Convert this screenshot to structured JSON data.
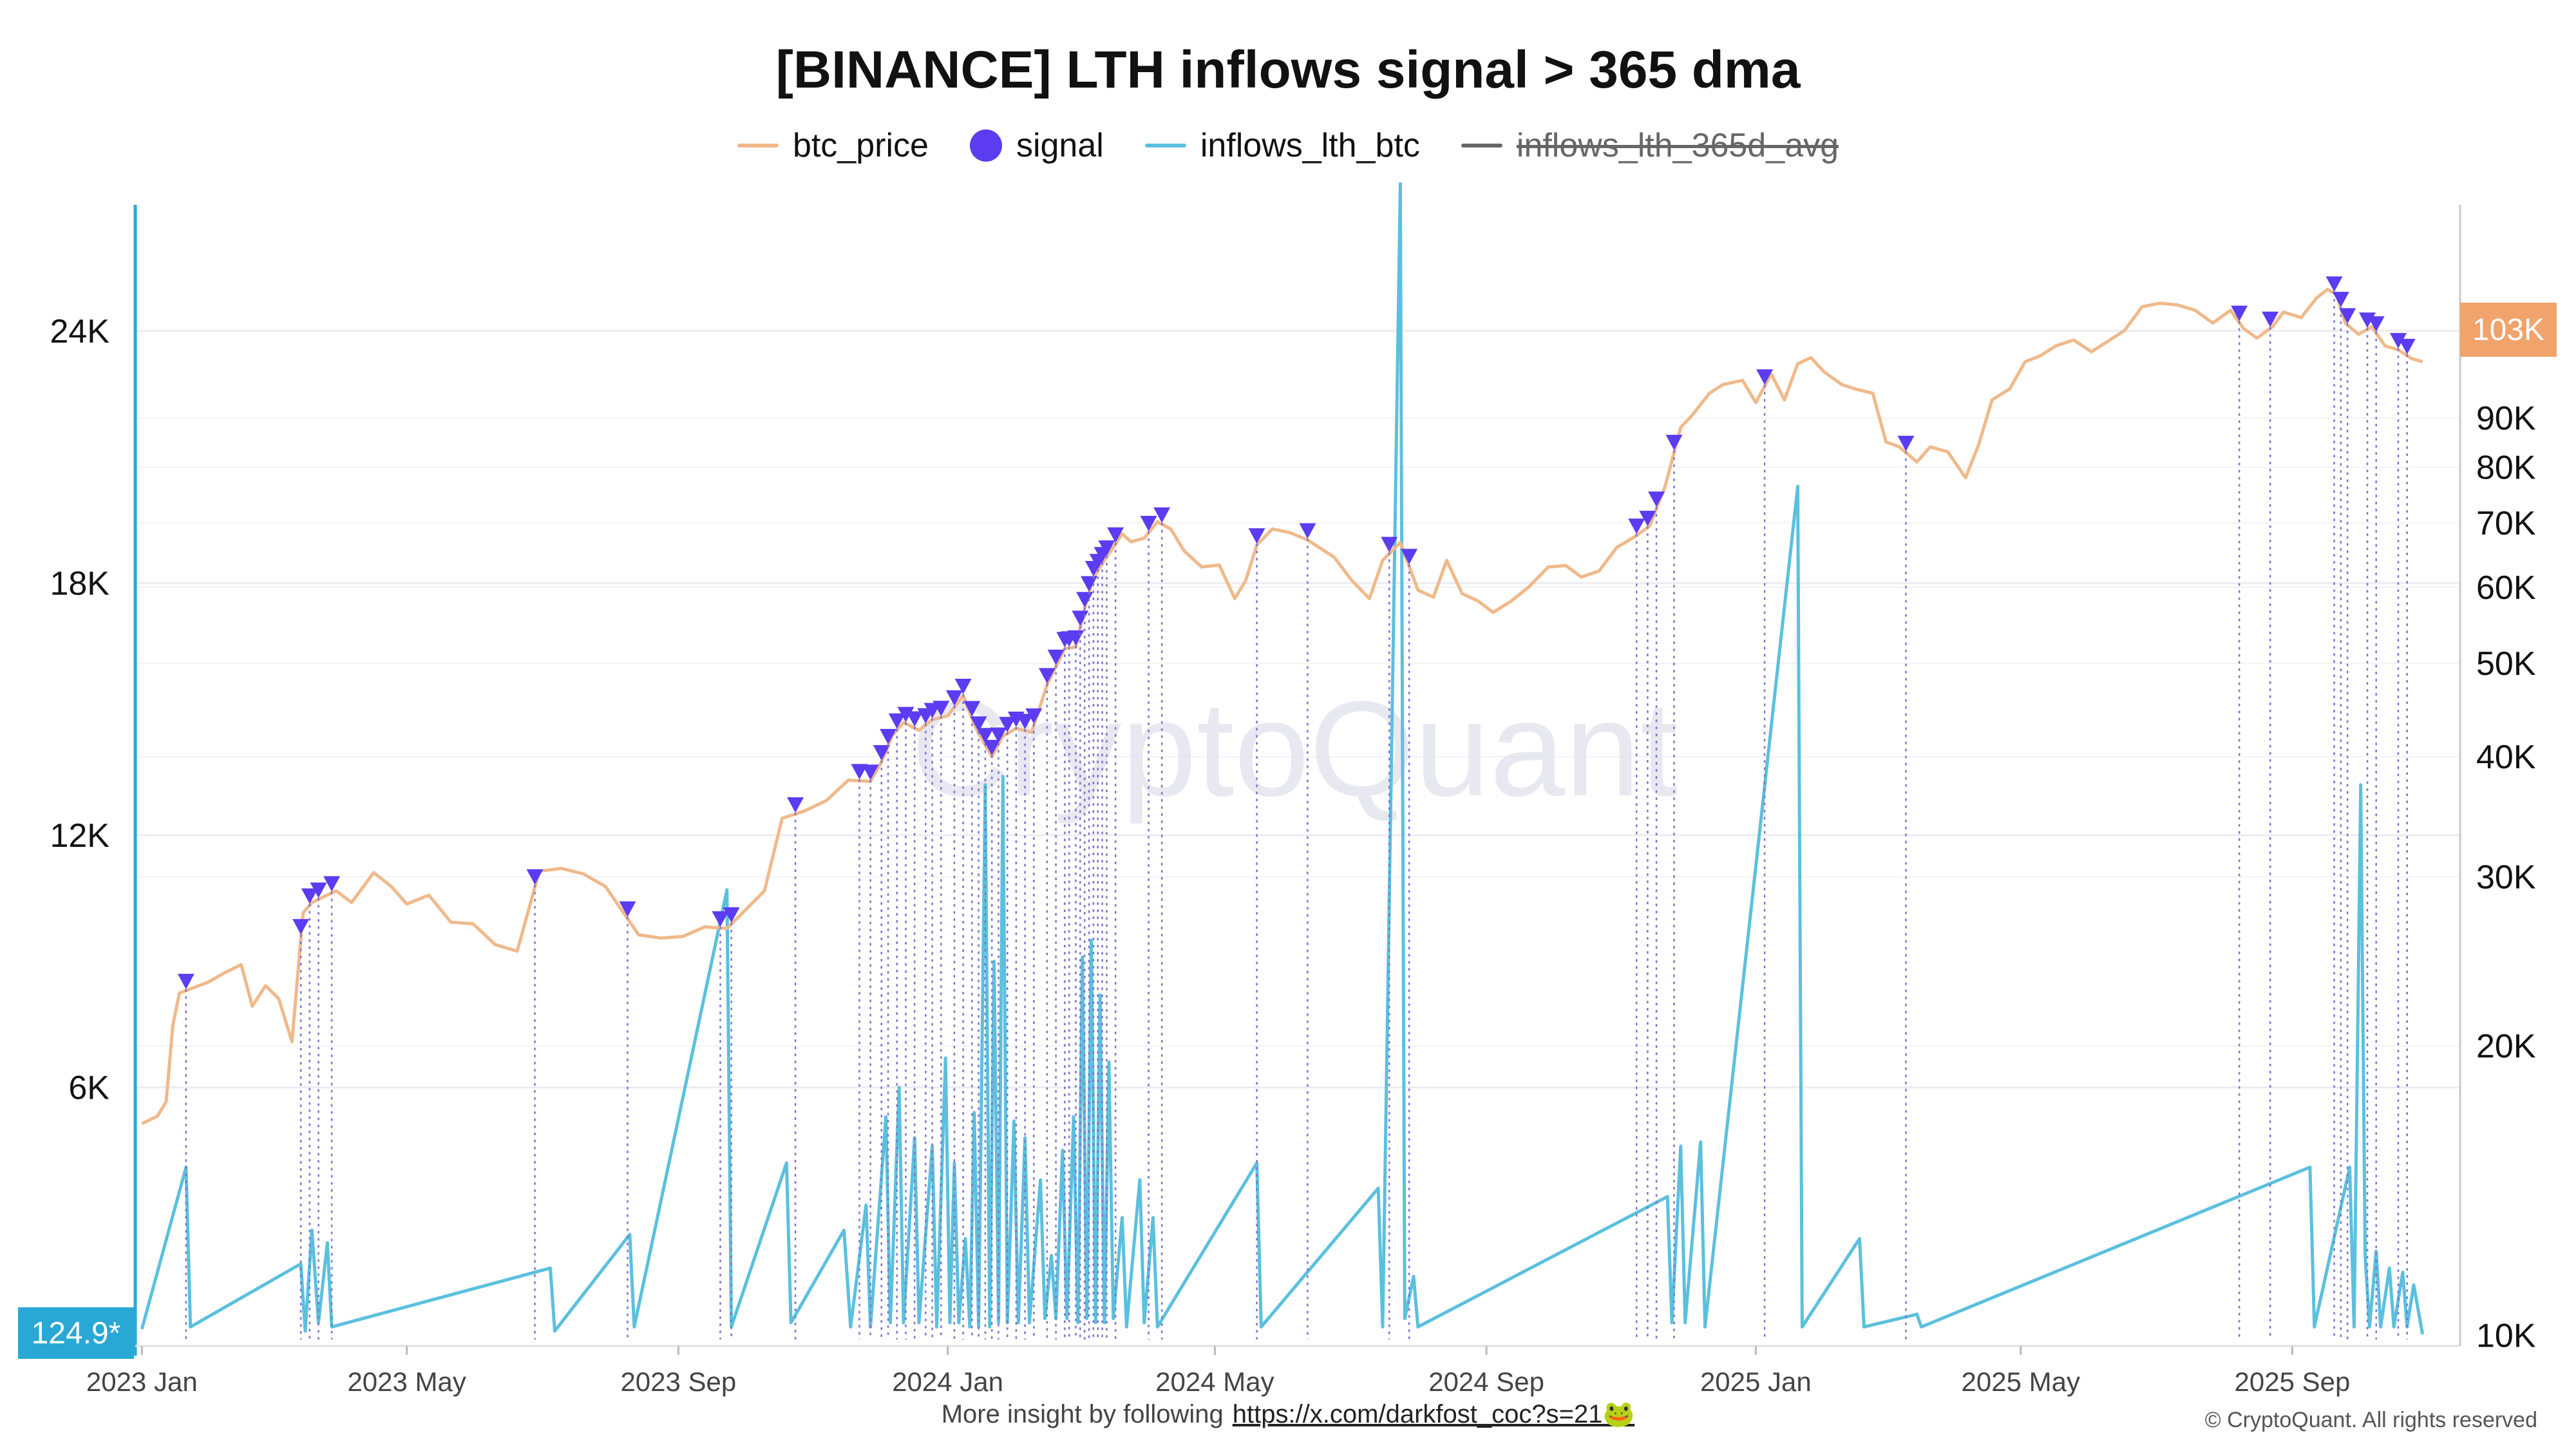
{
  "chart_data": {
    "type": "line",
    "title": "[BINANCE] LTH inflows signal > 365 dma",
    "legend": [
      {
        "name": "btc_price",
        "color": "#f0b98a",
        "marker": "line",
        "visible": true
      },
      {
        "name": "signal",
        "color": "#5b3cf0",
        "marker": "dot",
        "visible": true
      },
      {
        "name": "inflows_lth_btc",
        "color": "#5bc0de",
        "marker": "line",
        "visible": true
      },
      {
        "name": "inflows_lth_365d_avg",
        "color": "#666666",
        "marker": "line",
        "visible": false
      }
    ],
    "legend_position": "top-center",
    "x_ticks": [
      "2023 Jan",
      "2023 May",
      "2023 Sep",
      "2024 Jan",
      "2024 May",
      "2024 Sep",
      "2025 Jan",
      "2025 May",
      "2025 Sep"
    ],
    "x_tick_days": [
      0,
      120,
      243,
      365,
      486,
      609,
      731,
      851,
      974
    ],
    "x_start_date": "2023-01-01",
    "x_range_days": [
      -3,
      1050
    ],
    "left_axis": {
      "series": "inflows_lth_btc",
      "scale": "linear",
      "range": [
        0,
        27000
      ],
      "ticks": [
        6000,
        12000,
        18000,
        24000
      ],
      "tick_labels": [
        "6K",
        "12K",
        "18K",
        "24K"
      ],
      "current_value_label": "124.9*",
      "color": "#29a8d6"
    },
    "right_axis": {
      "series": "btc_price",
      "scale": "log",
      "range": [
        9900,
        150000
      ],
      "ticks": [
        10000,
        20000,
        30000,
        40000,
        50000,
        60000,
        70000,
        80000,
        90000
      ],
      "tick_labels": [
        "10K",
        "20K",
        "30K",
        "40K",
        "50K",
        "60K",
        "70K",
        "80K",
        "90K"
      ],
      "current_value_label": "103K",
      "color": "#f0a36a"
    },
    "grid": true,
    "btc_price_points": [
      [
        0,
        16600
      ],
      [
        7,
        16900
      ],
      [
        11,
        17500
      ],
      [
        14,
        21000
      ],
      [
        17,
        22700
      ],
      [
        30,
        23300
      ],
      [
        37,
        23800
      ],
      [
        45,
        24300
      ],
      [
        50,
        22000
      ],
      [
        56,
        23100
      ],
      [
        62,
        22400
      ],
      [
        68,
        20200
      ],
      [
        73,
        27500
      ],
      [
        77,
        28200
      ],
      [
        88,
        29000
      ],
      [
        95,
        28200
      ],
      [
        105,
        30300
      ],
      [
        113,
        29300
      ],
      [
        120,
        28100
      ],
      [
        130,
        28700
      ],
      [
        140,
        26900
      ],
      [
        150,
        26800
      ],
      [
        160,
        25500
      ],
      [
        170,
        25100
      ],
      [
        180,
        30400
      ],
      [
        190,
        30600
      ],
      [
        200,
        30200
      ],
      [
        210,
        29300
      ],
      [
        225,
        26100
      ],
      [
        235,
        25900
      ],
      [
        245,
        26000
      ],
      [
        255,
        26600
      ],
      [
        265,
        26500
      ],
      [
        272,
        27500
      ],
      [
        282,
        29000
      ],
      [
        290,
        34500
      ],
      [
        300,
        35100
      ],
      [
        310,
        36000
      ],
      [
        320,
        37800
      ],
      [
        330,
        37700
      ],
      [
        335,
        39500
      ],
      [
        340,
        42100
      ],
      [
        345,
        43400
      ],
      [
        352,
        42600
      ],
      [
        358,
        43700
      ],
      [
        365,
        44100
      ],
      [
        372,
        46300
      ],
      [
        378,
        42700
      ],
      [
        385,
        40000
      ],
      [
        390,
        42000
      ],
      [
        396,
        42800
      ],
      [
        403,
        42400
      ],
      [
        410,
        47500
      ],
      [
        418,
        51800
      ],
      [
        423,
        52000
      ],
      [
        427,
        57000
      ],
      [
        431,
        61400
      ],
      [
        436,
        64000
      ],
      [
        440,
        66000
      ],
      [
        444,
        68200
      ],
      [
        448,
        66900
      ],
      [
        454,
        67500
      ],
      [
        460,
        70200
      ],
      [
        466,
        69000
      ],
      [
        472,
        65500
      ],
      [
        480,
        63000
      ],
      [
        488,
        63300
      ],
      [
        495,
        58400
      ],
      [
        500,
        61000
      ],
      [
        505,
        66400
      ],
      [
        512,
        69000
      ],
      [
        520,
        68400
      ],
      [
        528,
        67200
      ],
      [
        540,
        64500
      ],
      [
        548,
        61000
      ],
      [
        556,
        58400
      ],
      [
        562,
        64000
      ],
      [
        570,
        66800
      ],
      [
        578,
        59600
      ],
      [
        585,
        58600
      ],
      [
        591,
        64000
      ],
      [
        598,
        59100
      ],
      [
        605,
        58100
      ],
      [
        612,
        56500
      ],
      [
        620,
        58000
      ],
      [
        628,
        60000
      ],
      [
        637,
        63000
      ],
      [
        645,
        63200
      ],
      [
        652,
        61500
      ],
      [
        660,
        62400
      ],
      [
        668,
        66000
      ],
      [
        676,
        67700
      ],
      [
        683,
        69500
      ],
      [
        690,
        76500
      ],
      [
        697,
        88000
      ],
      [
        702,
        90500
      ],
      [
        710,
        95500
      ],
      [
        716,
        97500
      ],
      [
        725,
        98500
      ],
      [
        731,
        93400
      ],
      [
        738,
        100000
      ],
      [
        744,
        94000
      ],
      [
        750,
        102500
      ],
      [
        756,
        104000
      ],
      [
        762,
        100500
      ],
      [
        770,
        97500
      ],
      [
        776,
        96500
      ],
      [
        784,
        95500
      ],
      [
        790,
        85000
      ],
      [
        796,
        84000
      ],
      [
        804,
        81000
      ],
      [
        810,
        84000
      ],
      [
        818,
        83000
      ],
      [
        826,
        78000
      ],
      [
        832,
        84500
      ],
      [
        838,
        94000
      ],
      [
        846,
        96500
      ],
      [
        853,
        103000
      ],
      [
        860,
        104500
      ],
      [
        867,
        107000
      ],
      [
        875,
        108500
      ],
      [
        883,
        105500
      ],
      [
        890,
        108000
      ],
      [
        898,
        111000
      ],
      [
        906,
        117500
      ],
      [
        914,
        118500
      ],
      [
        922,
        118000
      ],
      [
        930,
        116500
      ],
      [
        938,
        113000
      ],
      [
        946,
        116500
      ],
      [
        952,
        111500
      ],
      [
        958,
        109000
      ],
      [
        965,
        112000
      ],
      [
        970,
        116000
      ],
      [
        978,
        114500
      ],
      [
        985,
        120000
      ],
      [
        990,
        122500
      ],
      [
        994,
        121000
      ],
      [
        998,
        113000
      ],
      [
        1004,
        110000
      ],
      [
        1010,
        112000
      ],
      [
        1016,
        107000
      ],
      [
        1022,
        106000
      ],
      [
        1028,
        103800
      ],
      [
        1033,
        103000
      ]
    ],
    "inflows_lth_btc_points": [
      [
        0,
        250
      ],
      [
        20,
        4100
      ],
      [
        22,
        300
      ],
      [
        72,
        1800
      ],
      [
        74,
        200
      ],
      [
        77,
        2600
      ],
      [
        80,
        400
      ],
      [
        84,
        2300
      ],
      [
        86,
        300
      ],
      [
        185,
        1700
      ],
      [
        187,
        200
      ],
      [
        221,
        2500
      ],
      [
        223,
        300
      ],
      [
        265,
        10700
      ],
      [
        267,
        300
      ],
      [
        292,
        4200
      ],
      [
        294,
        400
      ],
      [
        318,
        2600
      ],
      [
        321,
        300
      ],
      [
        328,
        3200
      ],
      [
        330,
        300
      ],
      [
        337,
        5300
      ],
      [
        339,
        400
      ],
      [
        343,
        6000
      ],
      [
        345,
        400
      ],
      [
        350,
        4800
      ],
      [
        352,
        400
      ],
      [
        358,
        4600
      ],
      [
        360,
        300
      ],
      [
        364,
        6700
      ],
      [
        366,
        400
      ],
      [
        368,
        4200
      ],
      [
        370,
        400
      ],
      [
        373,
        2400
      ],
      [
        375,
        300
      ],
      [
        377,
        5400
      ],
      [
        379,
        300
      ],
      [
        382,
        13200
      ],
      [
        384,
        300
      ],
      [
        386,
        9000
      ],
      [
        388,
        400
      ],
      [
        390,
        13400
      ],
      [
        392,
        400
      ],
      [
        395,
        5200
      ],
      [
        397,
        400
      ],
      [
        400,
        4800
      ],
      [
        402,
        400
      ],
      [
        407,
        3800
      ],
      [
        409,
        500
      ],
      [
        412,
        2000
      ],
      [
        414,
        500
      ],
      [
        417,
        4500
      ],
      [
        419,
        500
      ],
      [
        422,
        5300
      ],
      [
        424,
        400
      ],
      [
        426,
        9100
      ],
      [
        428,
        500
      ],
      [
        430,
        9500
      ],
      [
        432,
        400
      ],
      [
        434,
        8200
      ],
      [
        436,
        400
      ],
      [
        438,
        6600
      ],
      [
        440,
        500
      ],
      [
        444,
        2900
      ],
      [
        446,
        300
      ],
      [
        452,
        3800
      ],
      [
        454,
        400
      ],
      [
        458,
        2900
      ],
      [
        460,
        300
      ],
      [
        505,
        4200
      ],
      [
        507,
        300
      ],
      [
        560,
        3600
      ],
      [
        562,
        300
      ],
      [
        570,
        27500
      ],
      [
        572,
        500
      ],
      [
        576,
        1500
      ],
      [
        578,
        300
      ],
      [
        691,
        3400
      ],
      [
        693,
        400
      ],
      [
        697,
        4600
      ],
      [
        699,
        400
      ],
      [
        706,
        4700
      ],
      [
        708,
        300
      ],
      [
        750,
        20300
      ],
      [
        752,
        300
      ],
      [
        778,
        2400
      ],
      [
        780,
        300
      ],
      [
        804,
        600
      ],
      [
        806,
        300
      ],
      [
        982,
        4100
      ],
      [
        984,
        300
      ],
      [
        1000,
        4100
      ],
      [
        1002,
        300
      ],
      [
        1005,
        13200
      ],
      [
        1007,
        2000
      ],
      [
        1009,
        300
      ],
      [
        1012,
        2100
      ],
      [
        1014,
        300
      ],
      [
        1018,
        1700
      ],
      [
        1020,
        300
      ],
      [
        1024,
        1600
      ],
      [
        1026,
        300
      ],
      [
        1029,
        1300
      ],
      [
        1033,
        125
      ]
    ],
    "signal_days": [
      20,
      72,
      76,
      80,
      86,
      178,
      220,
      262,
      267,
      296,
      325,
      330,
      335,
      338,
      342,
      346,
      350,
      355,
      358,
      362,
      368,
      372,
      376,
      379,
      382,
      385,
      388,
      392,
      396,
      400,
      404,
      410,
      414,
      418,
      420,
      423,
      425,
      427,
      429,
      431,
      433,
      435,
      437,
      441,
      456,
      462,
      505,
      528,
      565,
      574,
      677,
      682,
      686,
      694,
      735,
      799,
      950,
      964,
      993,
      996,
      999,
      1008,
      1012,
      1022,
      1026
    ]
  },
  "footer": {
    "note": "More insight by following",
    "link": "https://x.com/darkfost_coc?s=21🐸",
    "copyright": "© CryptoQuant. All rights reserved"
  },
  "watermark": "CryptoQuant"
}
